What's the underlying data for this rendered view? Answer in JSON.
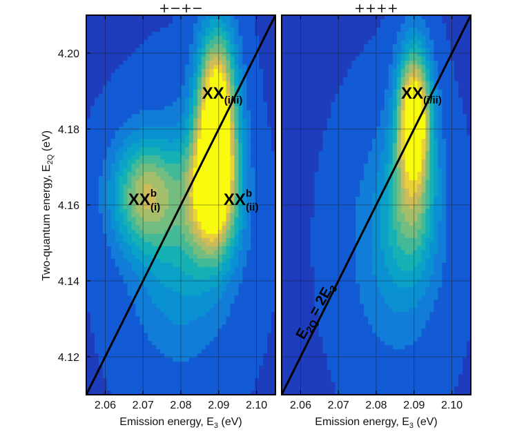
{
  "chart_data": {
    "type": "heatmap",
    "colormap": "parula",
    "grid": true,
    "shared_ylabel": {
      "main": "Two-quantum energy, E",
      "sub": "2Q",
      "unit": " (eV)"
    },
    "xlim": [
      2.055,
      2.105
    ],
    "ylim": [
      4.11,
      4.21
    ],
    "xticks": [
      2.06,
      2.07,
      2.08,
      2.09,
      2.1
    ],
    "xtick_labels": [
      "2.06",
      "2.07",
      "2.08",
      "2.09",
      "2.10"
    ],
    "yticks": [
      4.12,
      4.14,
      4.16,
      4.18,
      4.2
    ],
    "ytick_labels": [
      "4.12",
      "4.14",
      "4.16",
      "4.18",
      "4.20"
    ],
    "panels": [
      {
        "title": "+−+−",
        "xlabel": {
          "main": "Emission energy, E",
          "sub": "3",
          "unit": " (eV)"
        },
        "peaks": [
          {
            "x": 2.0895,
            "y": 4.186,
            "sx": 0.0035,
            "sy": 0.014,
            "amp": 1.0
          },
          {
            "x": 2.0885,
            "y": 4.164,
            "sx": 0.0045,
            "sy": 0.012,
            "amp": 0.95
          },
          {
            "x": 2.0705,
            "y": 4.163,
            "sx": 0.006,
            "sy": 0.01,
            "amp": 0.55
          },
          {
            "x": 2.08,
            "y": 4.15,
            "sx": 0.009,
            "sy": 0.02,
            "amp": 0.3
          }
        ],
        "annotations": [
          {
            "main": "XX",
            "sub": "(i/ii)",
            "sup": "",
            "x": 2.0856,
            "y": 4.188
          },
          {
            "main": "XX",
            "sub": "(i)",
            "sup": "b",
            "x": 2.0661,
            "y": 4.16
          },
          {
            "main": "XX",
            "sub": "(ii)",
            "sup": "b",
            "x": 2.0913,
            "y": 4.16
          }
        ],
        "diagonal": {
          "label_main": "",
          "label_sub": "",
          "label_tail": ""
        }
      },
      {
        "title": "++++",
        "xlabel": {
          "main": "Emission energy, E",
          "sub": "3",
          "unit": " (eV)"
        },
        "peaks": [
          {
            "x": 2.09,
            "y": 4.184,
            "sx": 0.003,
            "sy": 0.012,
            "amp": 1.0
          },
          {
            "x": 2.0895,
            "y": 4.162,
            "sx": 0.0045,
            "sy": 0.014,
            "amp": 0.4
          },
          {
            "x": 2.085,
            "y": 4.15,
            "sx": 0.008,
            "sy": 0.02,
            "amp": 0.22
          }
        ],
        "annotations": [
          {
            "main": "XX",
            "sub": "(i/ii)",
            "sup": "",
            "x": 2.0866,
            "y": 4.188
          }
        ],
        "diagonal": {
          "label_main": "E",
          "label_sub": "2Q",
          "label_tail": " = 2E",
          "label_tail_sub": "3"
        }
      }
    ]
  }
}
